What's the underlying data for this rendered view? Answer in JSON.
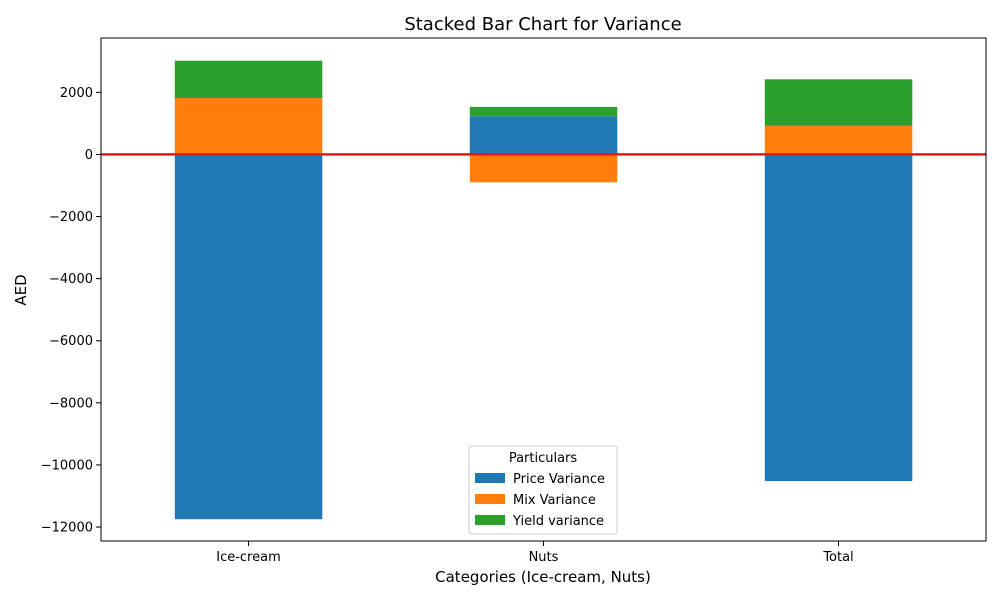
{
  "chart_data": {
    "type": "bar",
    "stacked": true,
    "title": "Stacked Bar Chart for Variance",
    "xlabel": "Categories (Ice-cream, Nuts)",
    "ylabel": "AED",
    "categories": [
      "Ice-cream",
      "Nuts",
      "Total"
    ],
    "series": [
      {
        "name": "Price Variance",
        "color": "#1f77b4",
        "values": [
          -11750,
          1230,
          -10520
        ]
      },
      {
        "name": "Mix Variance",
        "color": "#ff7f0e",
        "values": [
          1820,
          -900,
          920
        ]
      },
      {
        "name": "Yield variance",
        "color": "#2ca02c",
        "values": [
          1200,
          300,
          1500
        ]
      }
    ],
    "ylim": [
      -12450,
      3750
    ],
    "yticks": [
      2000,
      0,
      -2000,
      -4000,
      -6000,
      -8000,
      -10000,
      -12000
    ],
    "ytick_labels": [
      "2000",
      "0",
      "−2000",
      "−4000",
      "−6000",
      "−8000",
      "−10000",
      "−12000"
    ],
    "reference_line": {
      "value": 0,
      "color": "#e31a1c"
    },
    "legend": {
      "title": "Particulars",
      "placement": "lower-center"
    },
    "grid": false
  }
}
